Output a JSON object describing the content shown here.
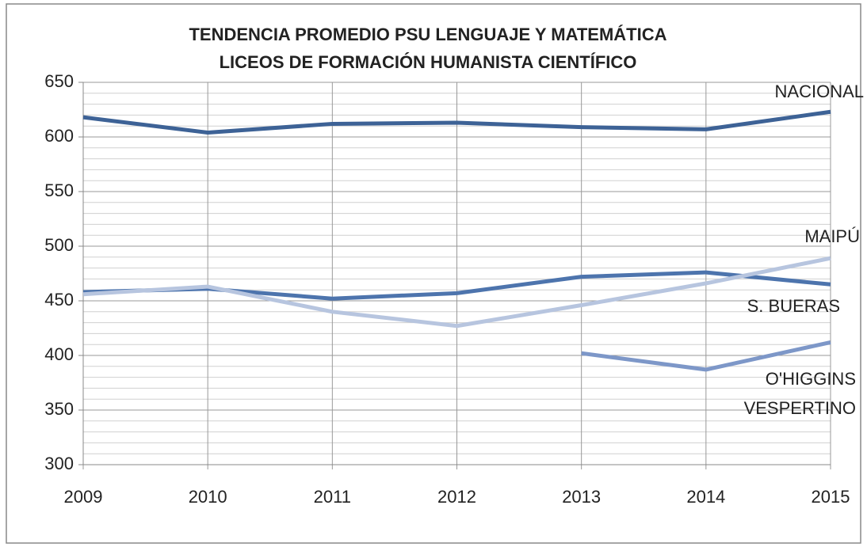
{
  "chart_data": {
    "type": "line",
    "title": "TENDENCIA PROMEDIO PSU LENGUAJE Y MATEMÁTICA",
    "subtitle": "LICEOS DE FORMACIÓN HUMANISTA CIENTÍFICO",
    "categories": [
      "2009",
      "2010",
      "2011",
      "2012",
      "2013",
      "2014",
      "2015"
    ],
    "series": [
      {
        "name": "NACIONAL",
        "color": "#3d6296",
        "values": [
          618,
          604,
          612,
          613,
          609,
          607,
          623
        ]
      },
      {
        "name": "S. BUERAS",
        "color": "#4d74ad",
        "values": [
          458,
          461,
          452,
          457,
          472,
          476,
          465
        ]
      },
      {
        "name": "MAIPÚ",
        "color": "#b7c5df",
        "values": [
          456,
          463,
          440,
          427,
          446,
          466,
          489
        ]
      },
      {
        "name": "O'HIGGINS VESPERTINO",
        "color": "#7d97c8",
        "values": [
          null,
          null,
          null,
          null,
          402,
          387,
          412
        ]
      }
    ],
    "ylim": [
      300,
      650
    ],
    "yticks": [
      300,
      350,
      400,
      450,
      500,
      550,
      600,
      650
    ],
    "grid": {
      "major": true,
      "minor_step": 10
    }
  }
}
